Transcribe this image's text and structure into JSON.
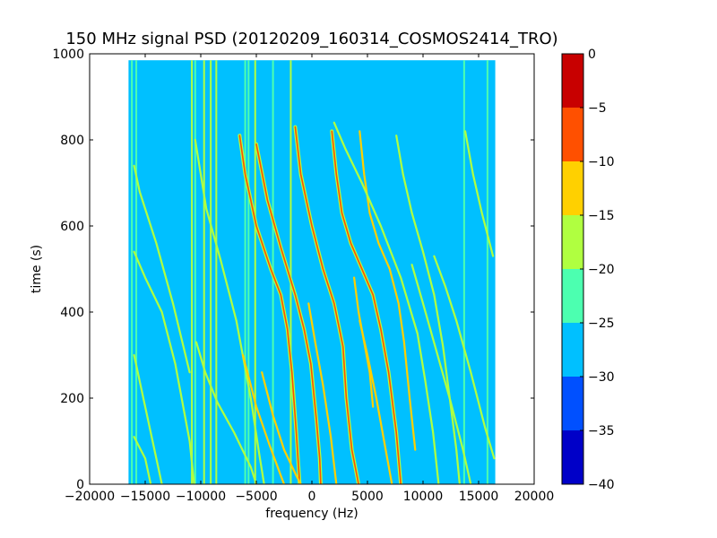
{
  "chart_data": {
    "type": "heatmap",
    "title": "150 MHz signal PSD (20120209_160314_COSMOS2414_TRO)",
    "xlabel": "frequency (Hz)",
    "ylabel": "time (s)",
    "xlim": [
      -20000,
      20000
    ],
    "ylim": [
      0,
      1000
    ],
    "xticks": [
      -20000,
      -15000,
      -10000,
      -5000,
      0,
      5000,
      10000,
      15000,
      20000
    ],
    "xtick_labels": [
      "−20000",
      "−15000",
      "−10000",
      "−5000",
      "0",
      "5000",
      "10000",
      "15000",
      "20000"
    ],
    "yticks": [
      0,
      200,
      400,
      600,
      800,
      1000
    ],
    "ytick_labels": [
      "0",
      "200",
      "400",
      "600",
      "800",
      "1000"
    ],
    "data_extent": {
      "frequency_range": [
        -16500,
        16500
      ],
      "time_range": [
        0,
        985
      ]
    },
    "background_level": -27.5,
    "grid": false,
    "colorbar": {
      "levels": [
        -40,
        -35,
        -30,
        -25,
        -20,
        -15,
        -10,
        -5,
        0
      ],
      "tick_labels": [
        "−40",
        "−35",
        "−30",
        "−25",
        "−20",
        "−15",
        "−10",
        "−5",
        "0"
      ],
      "colors": [
        "#0000c8",
        "#0050ff",
        "#00c0ff",
        "#4cffb0",
        "#b0ff40",
        "#ffd000",
        "#ff5000",
        "#c80000"
      ]
    },
    "vertical_lines": [
      {
        "f": -16200,
        "level": -22
      },
      {
        "f": -15800,
        "level": -22
      },
      {
        "f": -10800,
        "level": -17
      },
      {
        "f": -10500,
        "level": -22
      },
      {
        "f": -9700,
        "level": -17
      },
      {
        "f": -9100,
        "level": -17
      },
      {
        "f": -8600,
        "level": -17
      },
      {
        "f": -6000,
        "level": -22
      },
      {
        "f": -5700,
        "level": -22
      },
      {
        "f": -5100,
        "level": -17
      },
      {
        "f": -3500,
        "level": -22
      },
      {
        "f": -1900,
        "level": -17
      },
      {
        "f": 13700,
        "level": -22
      },
      {
        "f": 15800,
        "level": -22
      }
    ],
    "tracks": [
      {
        "level": -17,
        "points": [
          [
            -16000,
            740
          ],
          [
            -15500,
            680
          ],
          [
            -14000,
            560
          ],
          [
            -12500,
            420
          ],
          [
            -11000,
            260
          ]
        ]
      },
      {
        "level": -17,
        "points": [
          [
            -16000,
            540
          ],
          [
            -15000,
            480
          ],
          [
            -13500,
            400
          ],
          [
            -12300,
            280
          ],
          [
            -11000,
            100
          ],
          [
            -10600,
            0
          ]
        ]
      },
      {
        "level": -17,
        "points": [
          [
            -16000,
            300
          ],
          [
            -15000,
            180
          ],
          [
            -14000,
            60
          ],
          [
            -13500,
            0
          ]
        ]
      },
      {
        "level": -17,
        "points": [
          [
            -16000,
            110
          ],
          [
            -15000,
            60
          ],
          [
            -14500,
            0
          ]
        ]
      },
      {
        "level": -17,
        "points": [
          [
            -10500,
            800
          ],
          [
            -9500,
            640
          ],
          [
            -8200,
            520
          ],
          [
            -6800,
            380
          ],
          [
            -5500,
            200
          ],
          [
            -4800,
            80
          ],
          [
            -4300,
            0
          ]
        ]
      },
      {
        "level": -17,
        "points": [
          [
            -10400,
            330
          ],
          [
            -9600,
            260
          ],
          [
            -8500,
            190
          ],
          [
            -7000,
            120
          ],
          [
            -5500,
            40
          ],
          [
            -5000,
            0
          ]
        ]
      },
      {
        "level": -7,
        "points": [
          [
            -6500,
            810
          ],
          [
            -6000,
            720
          ],
          [
            -5000,
            600
          ],
          [
            -3700,
            500
          ],
          [
            -2800,
            440
          ],
          [
            -2200,
            360
          ],
          [
            -1800,
            260
          ],
          [
            -1400,
            120
          ],
          [
            -1100,
            0
          ]
        ]
      },
      {
        "level": -12,
        "points": [
          [
            -6200,
            300
          ],
          [
            -5000,
            180
          ],
          [
            -3800,
            90
          ],
          [
            -2800,
            20
          ],
          [
            -2500,
            0
          ]
        ]
      },
      {
        "level": -7,
        "points": [
          [
            -5000,
            790
          ],
          [
            -4000,
            660
          ],
          [
            -2800,
            550
          ],
          [
            -1500,
            440
          ],
          [
            -700,
            360
          ],
          [
            -100,
            280
          ],
          [
            400,
            150
          ],
          [
            700,
            60
          ],
          [
            800,
            0
          ]
        ]
      },
      {
        "level": -12,
        "points": [
          [
            -4500,
            260
          ],
          [
            -3500,
            160
          ],
          [
            -2500,
            80
          ],
          [
            -1400,
            20
          ],
          [
            -1000,
            0
          ]
        ]
      },
      {
        "level": -7,
        "points": [
          [
            -1500,
            830
          ],
          [
            -1000,
            720
          ],
          [
            0,
            600
          ],
          [
            1000,
            500
          ],
          [
            2000,
            420
          ],
          [
            2800,
            320
          ],
          [
            3100,
            200
          ],
          [
            3600,
            80
          ],
          [
            4200,
            0
          ]
        ]
      },
      {
        "level": -12,
        "points": [
          [
            -300,
            420
          ],
          [
            300,
            330
          ],
          [
            1000,
            230
          ],
          [
            1700,
            110
          ],
          [
            2200,
            0
          ]
        ]
      },
      {
        "level": -7,
        "points": [
          [
            1800,
            820
          ],
          [
            2200,
            720
          ],
          [
            2700,
            630
          ],
          [
            3500,
            560
          ],
          [
            4500,
            500
          ],
          [
            5500,
            440
          ],
          [
            6200,
            360
          ],
          [
            6900,
            260
          ],
          [
            7600,
            120
          ],
          [
            8000,
            0
          ]
        ]
      },
      {
        "level": -12,
        "points": [
          [
            4300,
            380
          ],
          [
            5000,
            300
          ],
          [
            5800,
            200
          ],
          [
            6500,
            100
          ],
          [
            7200,
            0
          ]
        ]
      },
      {
        "level": -12,
        "points": [
          [
            4300,
            820
          ],
          [
            4700,
            720
          ],
          [
            5200,
            630
          ],
          [
            6000,
            560
          ],
          [
            7000,
            500
          ],
          [
            7800,
            420
          ],
          [
            8300,
            330
          ],
          [
            8800,
            200
          ],
          [
            9300,
            80
          ]
        ]
      },
      {
        "level": -12,
        "points": [
          [
            3800,
            480
          ],
          [
            4200,
            400
          ],
          [
            4700,
            330
          ],
          [
            5200,
            260
          ],
          [
            5500,
            180
          ]
        ]
      },
      {
        "level": -17,
        "points": [
          [
            7600,
            810
          ],
          [
            8200,
            720
          ],
          [
            9000,
            630
          ],
          [
            10000,
            540
          ],
          [
            11000,
            440
          ],
          [
            11800,
            320
          ],
          [
            12400,
            200
          ],
          [
            13000,
            80
          ],
          [
            13300,
            0
          ]
        ]
      },
      {
        "level": -17,
        "points": [
          [
            9000,
            510
          ],
          [
            10000,
            420
          ],
          [
            11200,
            310
          ],
          [
            12500,
            190
          ],
          [
            13600,
            80
          ],
          [
            14300,
            0
          ]
        ]
      },
      {
        "level": -17,
        "points": [
          [
            11000,
            530
          ],
          [
            12000,
            460
          ],
          [
            13000,
            380
          ],
          [
            14300,
            260
          ],
          [
            15600,
            130
          ],
          [
            16400,
            60
          ]
        ]
      },
      {
        "level": -17,
        "points": [
          [
            13800,
            820
          ],
          [
            14500,
            720
          ],
          [
            15300,
            630
          ],
          [
            16300,
            530
          ]
        ]
      },
      {
        "level": -17,
        "points": [
          [
            2000,
            840
          ],
          [
            3000,
            780
          ],
          [
            4500,
            700
          ],
          [
            6200,
            600
          ],
          [
            8000,
            480
          ],
          [
            9500,
            350
          ],
          [
            10200,
            240
          ],
          [
            10900,
            120
          ],
          [
            11400,
            0
          ]
        ]
      }
    ]
  }
}
